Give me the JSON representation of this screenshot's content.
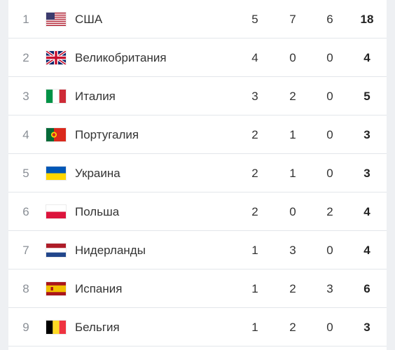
{
  "standings": [
    {
      "rank": "1",
      "country": "США",
      "flag": "usa-flag-icon",
      "gold": "5",
      "silver": "7",
      "bronze": "6",
      "total": "18"
    },
    {
      "rank": "2",
      "country": "Великобритания",
      "flag": "uk-flag-icon",
      "gold": "4",
      "silver": "0",
      "bronze": "0",
      "total": "4"
    },
    {
      "rank": "3",
      "country": "Италия",
      "flag": "italy-flag-icon",
      "gold": "3",
      "silver": "2",
      "bronze": "0",
      "total": "5"
    },
    {
      "rank": "4",
      "country": "Португалия",
      "flag": "portugal-flag-icon",
      "gold": "2",
      "silver": "1",
      "bronze": "0",
      "total": "3"
    },
    {
      "rank": "5",
      "country": "Украина",
      "flag": "ukraine-flag-icon",
      "gold": "2",
      "silver": "1",
      "bronze": "0",
      "total": "3"
    },
    {
      "rank": "6",
      "country": "Польша",
      "flag": "poland-flag-icon",
      "gold": "2",
      "silver": "0",
      "bronze": "2",
      "total": "4"
    },
    {
      "rank": "7",
      "country": "Нидерланды",
      "flag": "netherlands-flag-icon",
      "gold": "1",
      "silver": "3",
      "bronze": "0",
      "total": "4"
    },
    {
      "rank": "8",
      "country": "Испания",
      "flag": "spain-flag-icon",
      "gold": "1",
      "silver": "2",
      "bronze": "3",
      "total": "6"
    },
    {
      "rank": "9",
      "country": "Бельгия",
      "flag": "belgium-flag-icon",
      "gold": "1",
      "silver": "2",
      "bronze": "0",
      "total": "3"
    }
  ],
  "colors": {
    "row_divider": "#e3e6ea",
    "side_gutter": "#eef0f3",
    "rank_text": "#8a8f96",
    "body_text": "#333333"
  }
}
